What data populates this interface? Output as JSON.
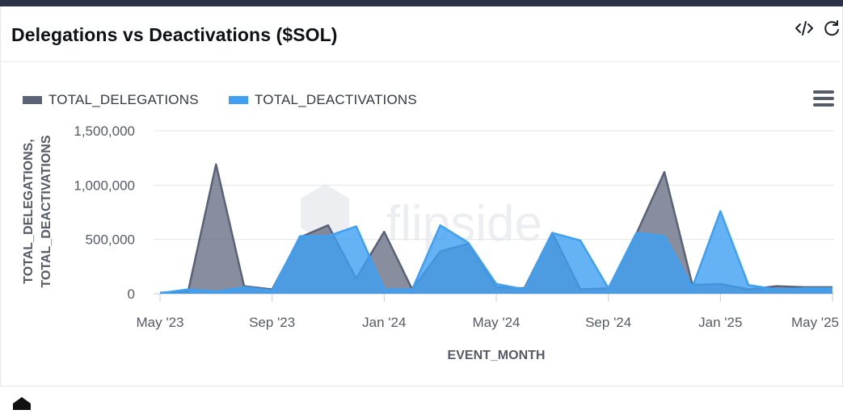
{
  "header": {
    "title": "Delegations vs Deactivations ($SOL)",
    "icons": [
      "code-icon",
      "refresh-icon"
    ]
  },
  "watermark": "flipside",
  "colors": {
    "delegations": "#5a6278",
    "deactivations": "#3ea0f2",
    "delegations_fill": "#5a6278",
    "deactivations_fill": "#3ea0f2"
  },
  "chart_data": {
    "type": "area",
    "xlabel": "EVENT_MONTH",
    "ylabel": [
      "TOTAL_DELEGATIONS,",
      "TOTAL_DEACTIVATIONS"
    ],
    "x": [
      "2023-05",
      "2023-06",
      "2023-07",
      "2023-08",
      "2023-09",
      "2023-10",
      "2023-11",
      "2023-12",
      "2024-01",
      "2024-02",
      "2024-03",
      "2024-04",
      "2024-05",
      "2024-06",
      "2024-07",
      "2024-08",
      "2024-09",
      "2024-10",
      "2024-11",
      "2024-12",
      "2025-01",
      "2025-02",
      "2025-03",
      "2025-04",
      "2025-05"
    ],
    "x_tick_labels": [
      "May '23",
      "Sep '23",
      "Jan '24",
      "May '24",
      "Sep '24",
      "Jan '25",
      "May '25"
    ],
    "ylim": [
      0,
      1500000
    ],
    "y_ticks": [
      0,
      500000,
      1000000,
      1500000
    ],
    "y_tick_labels": [
      "0",
      "500,000",
      "1,000,000",
      "1,500,000"
    ],
    "grid": true,
    "legend_position": "top-left",
    "series": [
      {
        "name": "TOTAL_DELEGATIONS",
        "values": [
          10000,
          20000,
          1190000,
          70000,
          40000,
          520000,
          630000,
          140000,
          570000,
          40000,
          390000,
          460000,
          60000,
          50000,
          560000,
          40000,
          50000,
          550000,
          1120000,
          80000,
          90000,
          40000,
          70000,
          60000,
          60000
        ]
      },
      {
        "name": "TOTAL_DEACTIVATIONS",
        "values": [
          5000,
          40000,
          20000,
          60000,
          30000,
          530000,
          530000,
          620000,
          40000,
          40000,
          630000,
          470000,
          90000,
          40000,
          560000,
          490000,
          50000,
          560000,
          530000,
          60000,
          760000,
          80000,
          40000,
          50000,
          50000
        ]
      }
    ]
  }
}
